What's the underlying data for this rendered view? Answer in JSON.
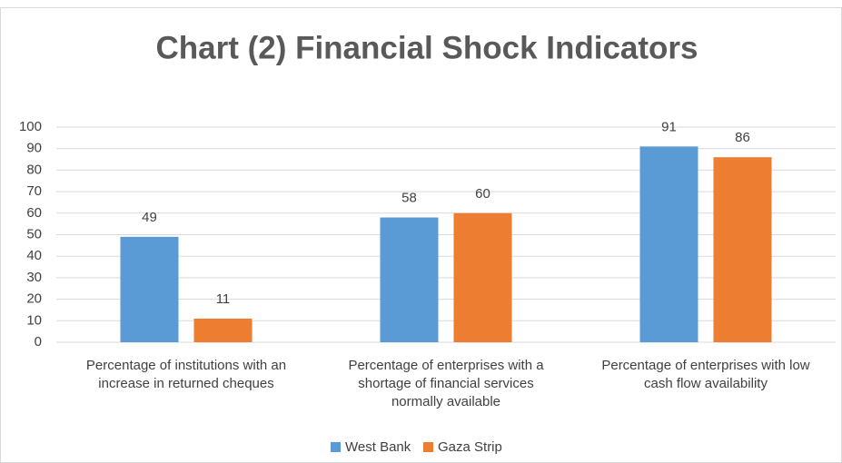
{
  "chart_data": {
    "type": "bar",
    "title": "Chart (2) Financial Shock Indicators",
    "categories": [
      "Percentage of institutions with an increase in returned cheques",
      "Percentage of enterprises with a shortage of financial services normally available",
      "Percentage of enterprises with low cash flow availability"
    ],
    "series": [
      {
        "name": "West Bank",
        "color": "#5b9bd5",
        "values": [
          49,
          58,
          91
        ]
      },
      {
        "name": "Gaza Strip",
        "color": "#ed7d31",
        "values": [
          11,
          60,
          86
        ]
      }
    ],
    "ylim": [
      0,
      100
    ],
    "yticks": [
      0,
      10,
      20,
      30,
      40,
      50,
      60,
      70,
      80,
      90,
      100
    ],
    "grid": true,
    "legend": "bottom"
  }
}
